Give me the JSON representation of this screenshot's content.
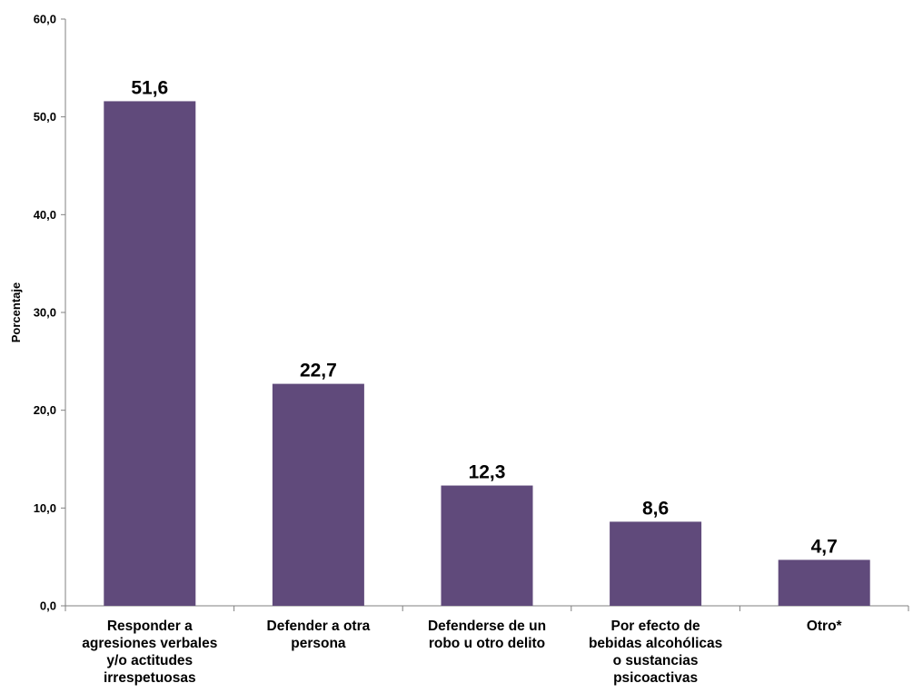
{
  "chart_data": {
    "type": "bar",
    "title": "",
    "xlabel": "",
    "ylabel": "Porcentaje",
    "ylim": [
      0,
      60
    ],
    "ytick_values": [
      0,
      10,
      20,
      30,
      40,
      50,
      60
    ],
    "ytick_labels": [
      "0,0",
      "10,0",
      "20,0",
      "30,0",
      "40,0",
      "50,0",
      "60,0"
    ],
    "categories": [
      [
        "Responder a",
        "agresiones verbales",
        "y/o actitudes",
        "irrespetuosas"
      ],
      [
        "Defender a otra",
        "persona"
      ],
      [
        "Defenderse de un",
        "robo u otro delito"
      ],
      [
        "Por efecto de",
        "bebidas alcohólicas",
        "o sustancias",
        "psicoactivas"
      ],
      [
        "Otro*"
      ]
    ],
    "values": [
      51.6,
      22.7,
      12.3,
      8.6,
      4.7
    ],
    "value_labels": [
      "51,6",
      "22,7",
      "12,3",
      "8,6",
      "4,7"
    ],
    "bar_color": "#604a7b",
    "grid": false,
    "legend": "none"
  }
}
